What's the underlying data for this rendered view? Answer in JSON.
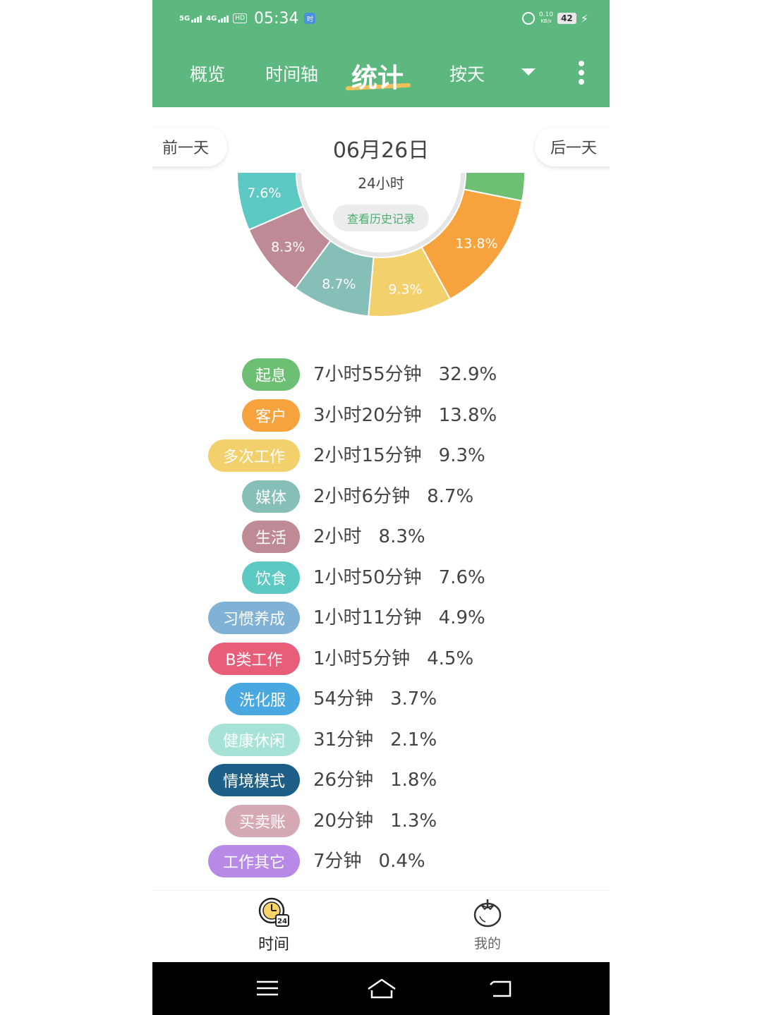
{
  "status_bar": {
    "signal1": "5G",
    "signal2": "4G",
    "hd": "HD",
    "time": "05:34",
    "speed_value": "0.10",
    "speed_unit": "KB/s",
    "battery": "42",
    "app_badge": "时"
  },
  "header": {
    "tabs": [
      "概览",
      "时间轴",
      "统计"
    ],
    "active_tab": "统计",
    "period_selector": "按天",
    "accent_color": "#5cb87e"
  },
  "date_bar": {
    "prev_label": "前一天",
    "date": "06月26日",
    "next_label": "后一天"
  },
  "chart_center": {
    "total": "24小时",
    "history_button": "查看历史记录"
  },
  "chart_data": {
    "type": "pie",
    "donut": true,
    "slices": [
      {
        "label": "起息",
        "value": 32.9,
        "color": "#6cbf73"
      },
      {
        "label": "客户",
        "value": 13.8,
        "color": "#f7a33d"
      },
      {
        "label": "多次工作",
        "value": 9.3,
        "color": "#f2d06b"
      },
      {
        "label": "媒体",
        "value": 8.7,
        "color": "#86bfb8"
      },
      {
        "label": "生活",
        "value": 8.3,
        "color": "#bd8a96"
      },
      {
        "label": "饮食",
        "value": 7.6,
        "color": "#5cc9c2"
      },
      {
        "label": "习惯养成",
        "value": 4.9,
        "color": "#7fb2d4"
      },
      {
        "label": "B类工作",
        "value": 4.5,
        "color": "#e85d78"
      },
      {
        "label": "洗化服",
        "value": 3.7,
        "color": "#4aa8e0"
      },
      {
        "label": "健康休闲",
        "value": 2.1,
        "color": "#a6e3d6"
      },
      {
        "label": "情境模式",
        "value": 1.8,
        "color": "#1d5f86"
      },
      {
        "label": "买卖账",
        "value": 1.3,
        "color": "#d6aab4"
      },
      {
        "label": "工作其它",
        "value": 0.4,
        "color": "#b88ae8"
      }
    ],
    "visible_slice_labels": {
      "客户": "13.8%",
      "多次工作": "9.3%",
      "媒体": "8.7%",
      "生活": "8.3%",
      "饮食": "7.6%"
    }
  },
  "legend": [
    {
      "name": "起息",
      "duration": "7小时55分钟",
      "percent": "32.9%",
      "color": "#6cbf73"
    },
    {
      "name": "客户",
      "duration": "3小时20分钟",
      "percent": "13.8%",
      "color": "#f7a33d"
    },
    {
      "name": "多次工作",
      "duration": "2小时15分钟",
      "percent": "9.3%",
      "color": "#f2d06b"
    },
    {
      "name": "媒体",
      "duration": "2小时6分钟",
      "percent": "8.7%",
      "color": "#86bfb8"
    },
    {
      "name": "生活",
      "duration": "2小时",
      "percent": "8.3%",
      "color": "#bd8a96"
    },
    {
      "name": "饮食",
      "duration": "1小时50分钟",
      "percent": "7.6%",
      "color": "#5cc9c2"
    },
    {
      "name": "习惯养成",
      "duration": "1小时11分钟",
      "percent": "4.9%",
      "color": "#7fb2d4"
    },
    {
      "name": "B类工作",
      "duration": "1小时5分钟",
      "percent": "4.5%",
      "color": "#e85d78"
    },
    {
      "name": "洗化服",
      "duration": "54分钟",
      "percent": "3.7%",
      "color": "#4aa8e0"
    },
    {
      "name": "健康休闲",
      "duration": "31分钟",
      "percent": "2.1%",
      "color": "#a6e3d6"
    },
    {
      "name": "情境模式",
      "duration": "26分钟",
      "percent": "1.8%",
      "color": "#1d5f86"
    },
    {
      "name": "买卖账",
      "duration": "20分钟",
      "percent": "1.3%",
      "color": "#d6aab4"
    },
    {
      "name": "工作其它",
      "duration": "7分钟",
      "percent": "0.4%",
      "color": "#b88ae8"
    }
  ],
  "bottom_nav": {
    "time_label": "时间",
    "time_icon": "clock-24-icon",
    "mine_label": "我的",
    "mine_icon": "tomato-icon"
  },
  "system_nav": [
    "menu-icon",
    "home-icon",
    "back-icon"
  ]
}
